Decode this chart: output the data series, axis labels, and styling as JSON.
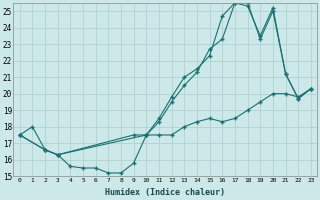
{
  "xlabel": "Humidex (Indice chaleur)",
  "bg_color": "#cce8e8",
  "grid_color": "#aacece",
  "line_color": "#1a7070",
  "xlim": [
    -0.5,
    23.5
  ],
  "ylim": [
    15,
    25.5
  ],
  "yticks": [
    15,
    16,
    17,
    18,
    19,
    20,
    21,
    22,
    23,
    24,
    25
  ],
  "xticks": [
    0,
    1,
    2,
    3,
    4,
    5,
    6,
    7,
    8,
    9,
    10,
    11,
    12,
    13,
    14,
    15,
    16,
    17,
    18,
    19,
    20,
    21,
    22,
    23
  ],
  "curve_bottom_x": [
    0,
    1,
    2,
    3,
    4,
    5,
    6,
    7,
    8,
    9,
    10,
    11,
    12,
    13,
    14,
    15,
    16,
    17,
    18,
    19,
    20,
    21,
    22,
    23
  ],
  "curve_bottom_y": [
    17.5,
    18.0,
    16.6,
    16.3,
    15.6,
    15.5,
    15.5,
    15.2,
    15.2,
    15.8,
    17.5,
    17.5,
    17.5,
    18.0,
    18.3,
    18.5,
    18.3,
    18.5,
    19.0,
    19.5,
    20.0,
    20.0,
    19.8,
    20.3
  ],
  "curve_mid_x": [
    0,
    2,
    3,
    9,
    10,
    11,
    12,
    13,
    14,
    15,
    16,
    17,
    18,
    19,
    20,
    21,
    22,
    23
  ],
  "curve_mid_y": [
    17.5,
    16.6,
    16.3,
    17.5,
    17.5,
    18.3,
    19.5,
    20.5,
    21.3,
    22.7,
    23.3,
    25.5,
    25.3,
    23.5,
    25.2,
    21.2,
    19.7,
    20.3
  ],
  "curve_top_x": [
    0,
    2,
    3,
    10,
    11,
    12,
    13,
    14,
    15,
    16,
    17,
    18,
    19,
    20,
    21,
    22,
    23
  ],
  "curve_top_y": [
    17.5,
    16.6,
    16.3,
    17.5,
    18.5,
    19.8,
    21.0,
    21.5,
    22.3,
    24.7,
    25.5,
    25.5,
    23.3,
    25.0,
    21.2,
    19.7,
    20.3
  ]
}
